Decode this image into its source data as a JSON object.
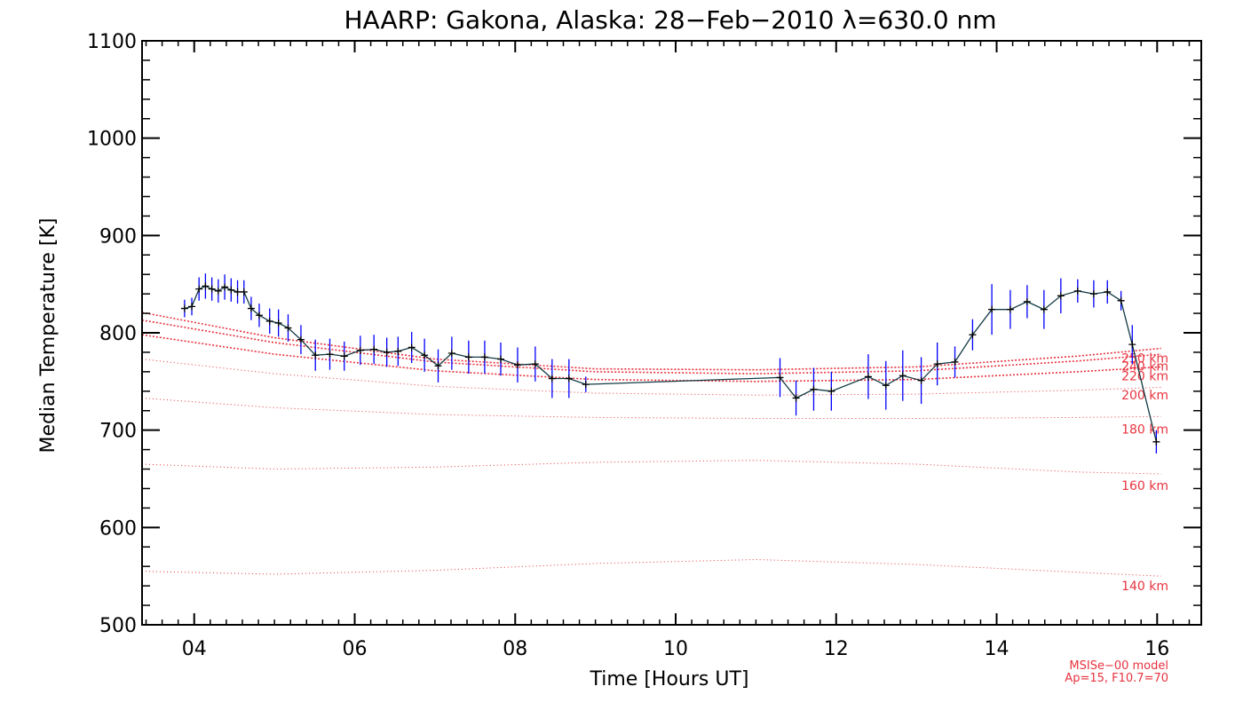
{
  "chart_data": {
    "type": "line",
    "title": "HAARP: Gakona,  Alaska: 28−Feb−2010 λ=630.0 nm",
    "xlabel": "Time [Hours UT]",
    "ylabel": "Median Temperature [K]",
    "xlim": [
      3.35,
      16.55
    ],
    "ylim": [
      500,
      1100
    ],
    "x_ticks": [
      "04",
      "06",
      "08",
      "10",
      "12",
      "14",
      "16"
    ],
    "x_tick_values": [
      4,
      6,
      8,
      10,
      12,
      14,
      16
    ],
    "y_ticks": [
      "500",
      "600",
      "700",
      "800",
      "900",
      "1000",
      "1100"
    ],
    "y_tick_values": [
      500,
      600,
      700,
      800,
      900,
      1000,
      1100
    ],
    "grid": false,
    "colors": {
      "measured": "#000000",
      "error_bar": "#0000ff",
      "model": "#e8333f"
    },
    "measured": {
      "name": "",
      "x": [
        3.88,
        3.97,
        4.06,
        4.14,
        4.22,
        4.3,
        4.38,
        4.46,
        4.54,
        4.62,
        4.71,
        4.81,
        4.94,
        5.05,
        5.17,
        5.33,
        5.51,
        5.69,
        5.87,
        6.07,
        6.24,
        6.4,
        6.54,
        6.71,
        6.87,
        7.04,
        7.21,
        7.42,
        7.62,
        7.82,
        8.03,
        8.25,
        8.46,
        8.67,
        8.88,
        11.3,
        11.5,
        11.72,
        11.94,
        12.4,
        12.62,
        12.83,
        13.06,
        13.26,
        13.48,
        13.7,
        13.94,
        14.17,
        14.38,
        14.59,
        14.8,
        15.01,
        15.21,
        15.38,
        15.55,
        15.69,
        15.99
      ],
      "y": [
        825,
        827,
        845,
        848,
        845,
        843,
        847,
        844,
        842,
        842,
        825,
        818,
        812,
        810,
        805,
        793,
        777,
        778,
        776,
        782,
        783,
        780,
        781,
        785,
        777,
        766,
        779,
        775,
        775,
        773,
        767,
        768,
        753,
        753,
        747,
        754,
        733,
        742,
        740,
        755,
        746,
        756,
        751,
        768,
        770,
        798,
        824,
        824,
        832,
        824,
        838,
        843,
        840,
        842,
        833,
        788,
        688
      ],
      "err": [
        9,
        9,
        12,
        13,
        12,
        12,
        13,
        12,
        12,
        12,
        12,
        12,
        13,
        14,
        14,
        15,
        16,
        16,
        15,
        15,
        15,
        15,
        15,
        16,
        17,
        17,
        17,
        17,
        17,
        17,
        18,
        18,
        20,
        20,
        8,
        20,
        18,
        22,
        20,
        23,
        25,
        26,
        24,
        22,
        16,
        16,
        26,
        20,
        17,
        20,
        18,
        12,
        14,
        12,
        10,
        20,
        12
      ]
    },
    "model_curves": [
      {
        "name": "140 km",
        "x": [
          3.35,
          5,
          7,
          9,
          11,
          13,
          15,
          16.05
        ],
        "y": [
          555,
          552,
          556,
          563,
          567,
          562,
          554,
          550
        ]
      },
      {
        "name": "160 km",
        "x": [
          3.35,
          5,
          7,
          9,
          11,
          13,
          15,
          16.05
        ],
        "y": [
          665,
          660,
          662,
          667,
          669,
          665,
          657,
          655
        ]
      },
      {
        "name": "180 km",
        "x": [
          3.35,
          5,
          7,
          9,
          11,
          13,
          15,
          16.05
        ],
        "y": [
          733,
          723,
          716,
          713,
          712,
          712,
          713,
          714
        ]
      },
      {
        "name": "200 km",
        "x": [
          3.35,
          5,
          7,
          9,
          11,
          13,
          15,
          16.05
        ],
        "y": [
          773,
          758,
          745,
          738,
          736,
          737,
          741,
          744
        ]
      },
      {
        "name": "220 km",
        "x": [
          3.35,
          5,
          7,
          9,
          11,
          13,
          15,
          16.05
        ],
        "y": [
          798,
          778,
          761,
          752,
          750,
          752,
          760,
          765
        ]
      },
      {
        "name": "240 km",
        "x": [
          3.35,
          5,
          7,
          9,
          11,
          13,
          15,
          16.05
        ],
        "y": [
          813,
          790,
          770,
          760,
          758,
          761,
          771,
          778
        ]
      },
      {
        "name": "250 km",
        "x": [
          3.35,
          5,
          7,
          9,
          11,
          13,
          15,
          16.05
        ],
        "y": [
          821,
          795,
          773,
          763,
          762,
          765,
          776,
          784
        ]
      }
    ],
    "model_label_y": [
      540,
      643,
      701,
      736,
      756,
      766,
      774
    ],
    "annotation": [
      "MSISe−00 model",
      "Ap=15, F10.7=70"
    ]
  }
}
